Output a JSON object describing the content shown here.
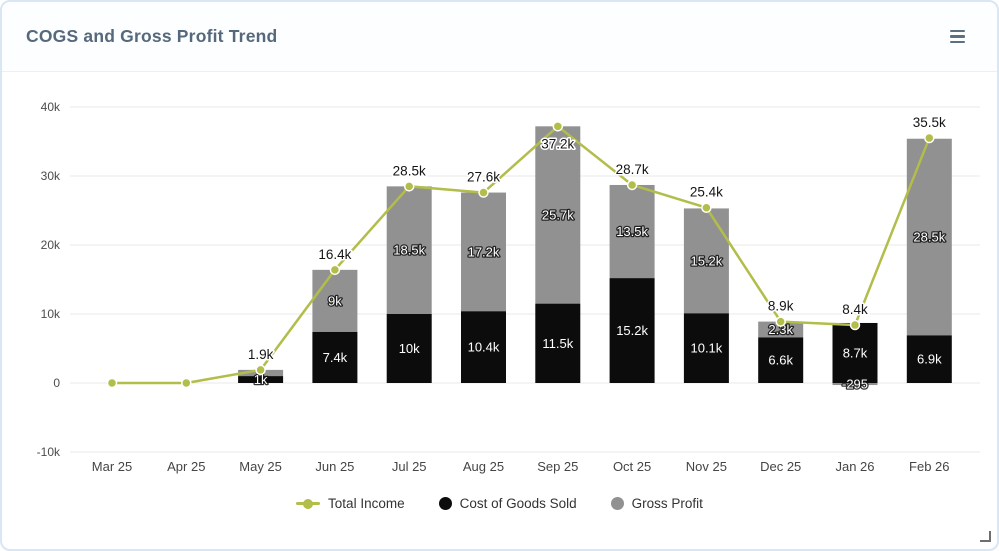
{
  "widget": {
    "title": "COGS and Gross Profit Trend",
    "menu_icon": "hamburger-menu-icon",
    "resize_icon": "resize-corner-icon"
  },
  "chart_data": {
    "type": "line+stacked-bar",
    "title": "COGS and Gross Profit Trend",
    "categories": [
      "Mar 25",
      "Apr 25",
      "May 25",
      "Jun 25",
      "Jul 25",
      "Aug 25",
      "Sep 25",
      "Oct 25",
      "Nov 25",
      "Dec 25",
      "Jan 26",
      "Feb 26"
    ],
    "series": [
      {
        "name": "Total Income",
        "type": "line",
        "color": "#b2bd4a",
        "values": [
          0,
          0,
          1900,
          16400,
          28500,
          27600,
          37200,
          28700,
          25400,
          8900,
          8400,
          35500
        ],
        "labels": [
          "",
          "",
          "1.9k",
          "16.4k",
          "28.5k",
          "27.6k",
          "37.2k",
          "28.7k",
          "25.4k",
          "8.9k",
          "8.4k",
          "35.5k"
        ]
      },
      {
        "name": "Cost of Goods Sold",
        "type": "bar",
        "color": "#0c0c0c",
        "values": [
          0,
          0,
          1000,
          7400,
          10000,
          10400,
          11500,
          15200,
          10100,
          6600,
          8700,
          6900
        ],
        "labels": [
          "",
          "",
          "1k",
          "7.4k",
          "10k",
          "10.4k",
          "11.5k",
          "15.2k",
          "10.1k",
          "6.6k",
          "8.7k",
          "6.9k"
        ]
      },
      {
        "name": "Gross Profit",
        "type": "bar",
        "color": "#919191",
        "values": [
          0,
          0,
          900,
          9000,
          18500,
          17200,
          25700,
          13500,
          15200,
          2300,
          -295,
          28500
        ],
        "labels": [
          "",
          "",
          "",
          "9k",
          "18.5k",
          "17.2k",
          "25.7k",
          "13.5k",
          "15.2k",
          "2.3k",
          "-295",
          "28.5k"
        ]
      }
    ],
    "yticks": {
      "labels": [
        "40k",
        "30k",
        "20k",
        "10k",
        "0",
        "-10k"
      ],
      "values": [
        40000,
        30000,
        20000,
        10000,
        0,
        -10000
      ]
    },
    "ylim": [
      -10000,
      40000
    ],
    "grid": "horizontal",
    "legend_position": "bottom"
  }
}
